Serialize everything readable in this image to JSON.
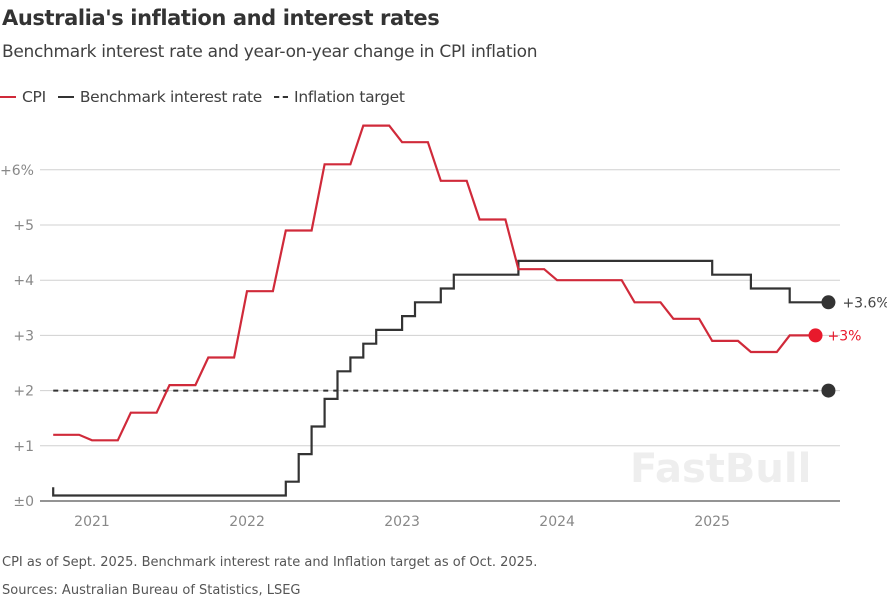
{
  "chart_data": {
    "type": "line",
    "title": "Australia's inflation and interest rates",
    "subtitle": "Benchmark interest rate and year-on-year change in CPI inflation",
    "legend": [
      {
        "name": "CPI",
        "style": "solid",
        "color": "#d02a3a"
      },
      {
        "name": "Benchmark interest rate",
        "style": "solid",
        "color": "#333333"
      },
      {
        "name": "Inflation target",
        "style": "dashed",
        "color": "#333333"
      }
    ],
    "legend_placement": "top-left",
    "grid": true,
    "ylim": [
      0,
      6.8
    ],
    "y_ticks": [
      {
        "value": 0,
        "label": "±0"
      },
      {
        "value": 1,
        "label": "+1"
      },
      {
        "value": 2,
        "label": "+2"
      },
      {
        "value": 3,
        "label": "+3"
      },
      {
        "value": 4,
        "label": "+4"
      },
      {
        "value": 5,
        "label": "+5"
      },
      {
        "value": 6,
        "label": "+6%"
      }
    ],
    "x_ticks": [
      "2021",
      "2022",
      "2023",
      "2024",
      "2025"
    ],
    "xlim": [
      "2020-10",
      "2025-10"
    ],
    "series": [
      {
        "name": "CPI",
        "color": "#d02a3a",
        "end_color": "#e8192c",
        "end_label": "+3%",
        "points": [
          [
            "2020-12",
            1.2
          ],
          [
            "2021-03",
            1.1
          ],
          [
            "2021-06",
            1.6
          ],
          [
            "2021-09",
            2.1
          ],
          [
            "2021-12",
            2.6
          ],
          [
            "2022-03",
            3.8
          ],
          [
            "2022-06",
            4.9
          ],
          [
            "2022-09",
            6.1
          ],
          [
            "2022-12",
            6.8
          ],
          [
            "2023-03",
            6.5
          ],
          [
            "2023-06",
            5.8
          ],
          [
            "2023-09",
            5.1
          ],
          [
            "2023-12",
            4.2
          ],
          [
            "2024-03",
            4.0
          ],
          [
            "2024-06",
            4.0
          ],
          [
            "2024-09",
            3.6
          ],
          [
            "2024-12",
            3.3
          ],
          [
            "2025-03",
            2.9
          ],
          [
            "2025-06",
            2.7
          ],
          [
            "2025-09",
            3.0
          ]
        ]
      },
      {
        "name": "Benchmark interest rate",
        "color": "#333333",
        "end_label": "+3.6%",
        "end_date": "2025-10",
        "steps": [
          [
            "2020-10",
            0.25
          ],
          [
            "2020-11",
            0.1
          ],
          [
            "2022-05",
            0.35
          ],
          [
            "2022-06",
            0.85
          ],
          [
            "2022-07",
            1.35
          ],
          [
            "2022-08",
            1.85
          ],
          [
            "2022-09",
            2.35
          ],
          [
            "2022-10",
            2.6
          ],
          [
            "2022-11",
            2.85
          ],
          [
            "2022-12",
            3.1
          ],
          [
            "2023-02",
            3.35
          ],
          [
            "2023-03",
            3.6
          ],
          [
            "2023-05",
            3.85
          ],
          [
            "2023-06",
            4.1
          ],
          [
            "2023-11",
            4.35
          ],
          [
            "2025-02",
            4.1
          ],
          [
            "2025-05",
            3.85
          ],
          [
            "2025-08",
            3.6
          ]
        ]
      },
      {
        "name": "Inflation target",
        "color": "#333333",
        "style": "dashed",
        "value": 2.0,
        "range": [
          "2020-10",
          "2025-10"
        ]
      }
    ],
    "notes": "CPI as of Sept. 2025. Benchmark interest rate and Inflation target as of Oct. 2025.",
    "sources": "Sources: Australian Bureau of Statistics, LSEG"
  },
  "watermark": "FastBull"
}
